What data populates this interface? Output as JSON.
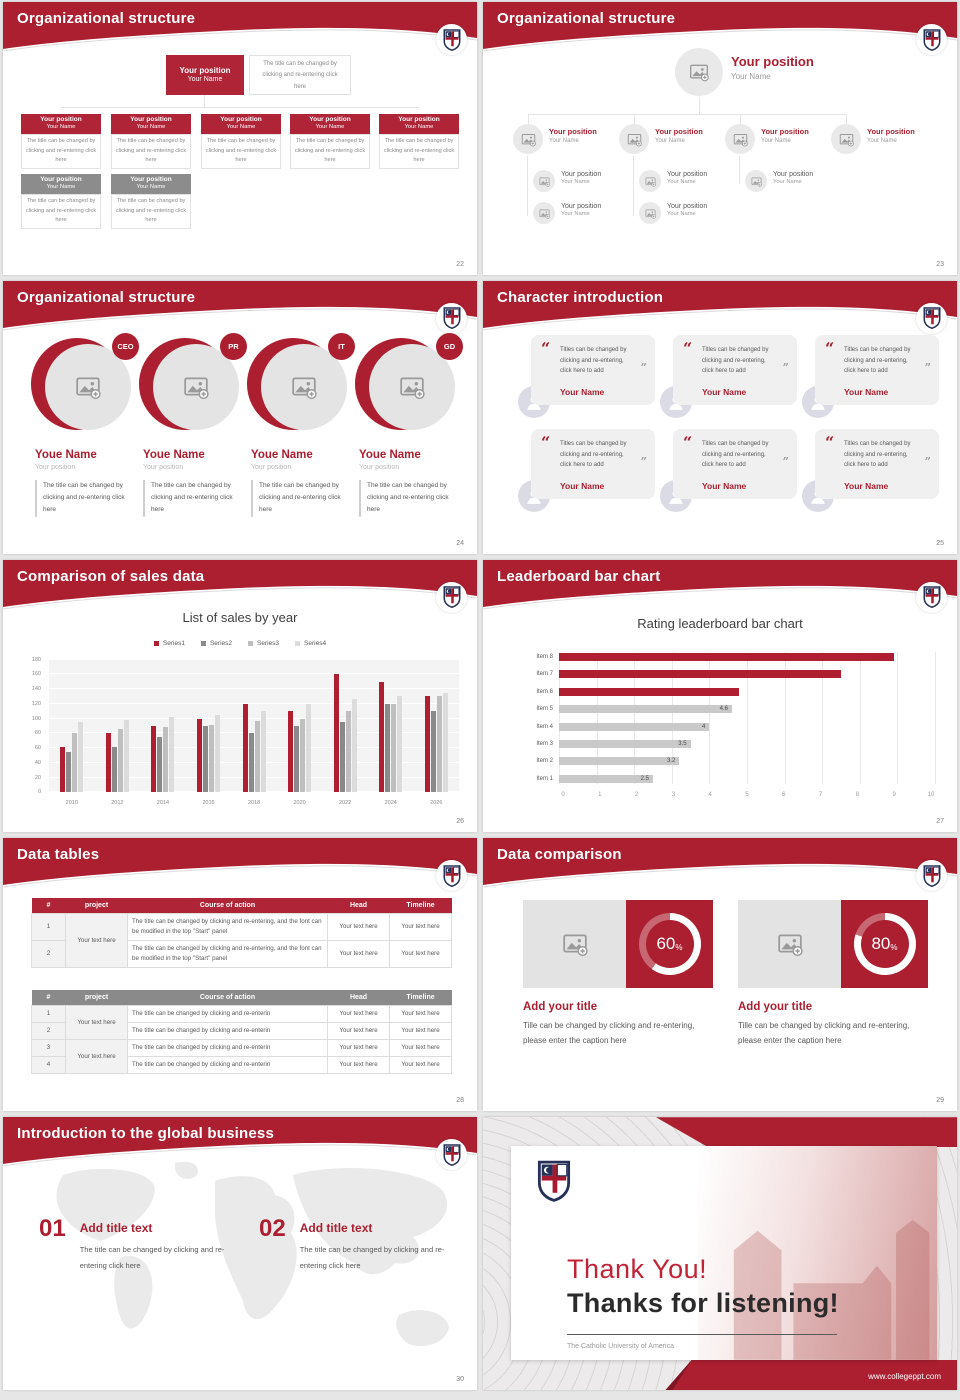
{
  "colors": {
    "crimson": "#ab1f30",
    "crimson_box": "#b02437",
    "gray_box": "#8c8c8c",
    "text_gray": "#595959",
    "muted": "#9b9b9b",
    "card_bg": "#f0f0f0",
    "table_gray_header": "#8a8a8a"
  },
  "slides": [
    {
      "header": "Organizational structure",
      "page": "22",
      "root": {
        "position": "Your position",
        "name": "Your Name"
      },
      "root_desc": "The title can be changed by clicking and re-entering click here",
      "nodes": [
        {
          "position": "Your position",
          "name": "Your Name",
          "desc": "The title can be changed by clicking and re-entering click here"
        },
        {
          "position": "Your position",
          "name": "Your Name",
          "desc": "The title can be changed by clicking and re-entering click here"
        },
        {
          "position": "Your position",
          "name": "Your Name",
          "desc": "The title can be changed by clicking and re-entering click here"
        },
        {
          "position": "Your position",
          "name": "Your Name",
          "desc": "The title can be changed by clicking and re-entering click here"
        },
        {
          "position": "Your position",
          "name": "Your Name",
          "desc": "The title can be changed by clicking and re-entering click here"
        },
        {
          "position": "Your position",
          "name": "Your Name",
          "desc": "The title can be changed by clicking and re-entering click here"
        },
        {
          "position": "Your position",
          "name": "Your Name",
          "desc": "The title can be changed by clicking and re-entering click here"
        }
      ]
    },
    {
      "header": "Organizational structure",
      "page": "23",
      "root": {
        "position": "Your position",
        "name": "Your Name"
      },
      "columns": [
        {
          "position": "Your position",
          "name": "Your Name",
          "subs": [
            {
              "position": "Your position",
              "name": "Your Name"
            },
            {
              "position": "Your position",
              "name": "Your Name"
            }
          ]
        },
        {
          "position": "Your position",
          "name": "Your Name",
          "subs": [
            {
              "position": "Your position",
              "name": "Your Name"
            },
            {
              "position": "Your position",
              "name": "Your Name"
            }
          ]
        },
        {
          "position": "Your position",
          "name": "Your Name",
          "subs": [
            {
              "position": "Your position",
              "name": "Your Name"
            }
          ]
        },
        {
          "position": "Your position",
          "name": "Your Name",
          "subs": []
        }
      ]
    },
    {
      "header": "Organizational structure",
      "page": "24",
      "members": [
        {
          "badge": "CEO",
          "name": "Youe Name",
          "position": "Your position",
          "desc": "The title can be changed by clicking and re-entering click here"
        },
        {
          "badge": "PR",
          "name": "Youe Name",
          "position": "Your position",
          "desc": "The title can be changed by clicking and re-entering click here"
        },
        {
          "badge": "IT",
          "name": "Youe Name",
          "position": "Your position",
          "desc": "The title can be changed by clicking and re-entering click here"
        },
        {
          "badge": "GD",
          "name": "Youe Name",
          "position": "Your position",
          "desc": "The title can be changed by clicking and re-entering click here"
        }
      ]
    },
    {
      "header": "Character introduction",
      "page": "25",
      "cards": [
        {
          "quote": "Titles can be changed by clicking and re-entering, click here to add",
          "name": "Your Name"
        },
        {
          "quote": "Titles can be changed by clicking and re-entering, click here to add",
          "name": "Your Name"
        },
        {
          "quote": "Titles can be changed by clicking and re-entering, click here to add",
          "name": "Your Name"
        },
        {
          "quote": "Titles can be changed by clicking and re-entering, click here to add",
          "name": "Your Name"
        },
        {
          "quote": "Titles can be changed by clicking and re-entering, click here to add",
          "name": "Your Name"
        },
        {
          "quote": "Titles can be changed by clicking and re-entering, click here to add",
          "name": "Your Name"
        }
      ]
    },
    {
      "header": "Comparison of sales data",
      "page": "26",
      "chart_data": {
        "type": "bar",
        "title": "List of sales by year",
        "categories": [
          "2010",
          "2012",
          "2014",
          "2016",
          "2018",
          "2020",
          "2022",
          "2024",
          "2026"
        ],
        "series": [
          {
            "name": "Series1",
            "color": "#b01e32",
            "values": [
              62,
              80,
              90,
              100,
              120,
              110,
              160,
              150,
              130
            ]
          },
          {
            "name": "Series2",
            "color": "#8a8a8a",
            "values": [
              55,
              62,
              75,
              90,
              80,
              90,
              95,
              120,
              110
            ]
          },
          {
            "name": "Series3",
            "color": "#bfbfbf",
            "values": [
              80,
              86,
              88,
              92,
              97,
              100,
              110,
              120,
              130
            ]
          },
          {
            "name": "Series4",
            "color": "#dcdcdc",
            "values": [
              95,
              98,
              102,
              105,
              110,
              120,
              126,
              130,
              135
            ]
          }
        ],
        "ylim": [
          0,
          180
        ],
        "ytick_step": 20,
        "grid": true,
        "legend_position": "top"
      }
    },
    {
      "header": "Leaderboard bar chart",
      "page": "27",
      "chart_data": {
        "type": "bar",
        "orientation": "horizontal",
        "title": "Rating leaderboard bar chart",
        "categories": [
          "Item 8",
          "Item 7",
          "Item 6",
          "Item 5",
          "Item 4",
          "Item 3",
          "Item 2",
          "Item 1"
        ],
        "values": [
          8.9,
          7.5,
          4.8,
          4.6,
          4,
          3.5,
          3.2,
          2.5
        ],
        "colors": [
          "#b01e32",
          "#b01e32",
          "#b01e32",
          "#c9c9c9",
          "#c9c9c9",
          "#c9c9c9",
          "#c9c9c9",
          "#c9c9c9"
        ],
        "labels": [
          "",
          "",
          "",
          "4.6",
          "4",
          "3.5",
          "3.2",
          "2.5"
        ],
        "xlim": [
          0,
          10
        ],
        "xtick_step": 1,
        "grid": true
      }
    },
    {
      "header": "Data tables",
      "page": "28",
      "table1": {
        "headers": [
          "#",
          "project",
          "Course of action",
          "Head",
          "Timeline"
        ],
        "project_merged": "Your text here",
        "rows": [
          {
            "num": "1",
            "course": "The title can be changed by clicking and re-entering, and the font can be modified in the top \"Start\" panel",
            "head": "Your text here",
            "timeline": "Your text here"
          },
          {
            "num": "2",
            "course": "The title can be changed by clicking and re-entering, and the font can be modified in the top \"Start\" panel",
            "head": "Your text here",
            "timeline": "Your text here"
          }
        ]
      },
      "table2": {
        "headers": [
          "#",
          "project",
          "Course of action",
          "Head",
          "Timeline"
        ],
        "project_merged_a": "Your text here",
        "project_merged_b": "Your text here",
        "rows": [
          {
            "num": "1",
            "course": "The title can be changed by clicking and re-enterin",
            "head": "Your text here",
            "timeline": "Your text here"
          },
          {
            "num": "2",
            "course": "The title can be changed by clicking and re-enterin",
            "head": "Your text here",
            "timeline": "Your text here"
          },
          {
            "num": "3",
            "course": "The title can be changed by clicking and re-enterin",
            "head": "Your text here",
            "timeline": "Your text here"
          },
          {
            "num": "4",
            "course": "The title can be changed by clicking and re-enterin",
            "head": "Your text here",
            "timeline": "Your text here"
          }
        ]
      }
    },
    {
      "header": "Data comparison",
      "page": "29",
      "panels": [
        {
          "value": 60,
          "percent": "60",
          "unit": "%",
          "title": "Add your title",
          "caption": "Tille can be changed by clicking and re-entering, please enter the caption here"
        },
        {
          "value": 80,
          "percent": "80",
          "unit": "%",
          "title": "Add your title",
          "caption": "Tille can be changed by clicking and re-entering, please enter the caption here"
        }
      ]
    },
    {
      "header": "Introduction to the global business",
      "page": "30",
      "items": [
        {
          "num": "01",
          "title": "Add title text",
          "desc": "The title can be changed by clicking and re-entering click here"
        },
        {
          "num": "02",
          "title": "Add title text",
          "desc": "The title can be changed by clicking and re-entering click here"
        }
      ]
    },
    {
      "thank_you": {
        "line1": "Thank You!",
        "line2": "Thanks for listening!",
        "subtitle": "The Catholic University of America",
        "url": "www.collegeppt.com"
      }
    }
  ]
}
